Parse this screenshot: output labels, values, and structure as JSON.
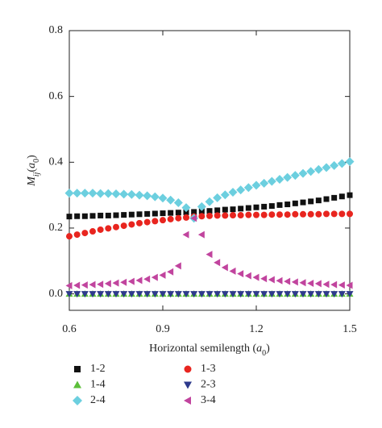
{
  "chart_data": {
    "type": "scatter",
    "xlabel": [
      "Horizontal semilength (",
      "a",
      "0",
      ")"
    ],
    "ylabel": [
      "M",
      "ij",
      "(",
      "a",
      "0",
      ")"
    ],
    "x": [
      0.6,
      0.625,
      0.65,
      0.675,
      0.7,
      0.725,
      0.75,
      0.775,
      0.8,
      0.825,
      0.85,
      0.875,
      0.9,
      0.925,
      0.95,
      0.975,
      1.0,
      1.025,
      1.05,
      1.075,
      1.1,
      1.125,
      1.15,
      1.175,
      1.2,
      1.225,
      1.25,
      1.275,
      1.3,
      1.325,
      1.35,
      1.375,
      1.4,
      1.425,
      1.45,
      1.475,
      1.5
    ],
    "xlim": [
      0.6,
      1.5
    ],
    "xticks": [
      0.6,
      0.9,
      1.2,
      1.5
    ],
    "ylim": [
      -0.05,
      0.8
    ],
    "yticks": [
      {
        "value": 0,
        "label": "0.0"
      },
      0.2,
      0.4,
      0.6,
      0.8
    ],
    "series": [
      {
        "name": "1-2",
        "color": "#111111",
        "marker": "square",
        "values": [
          0.235,
          0.236,
          0.236,
          0.237,
          0.238,
          0.238,
          0.239,
          0.24,
          0.241,
          0.242,
          0.243,
          0.244,
          0.245,
          0.246,
          0.247,
          0.248,
          0.249,
          0.251,
          0.252,
          0.254,
          0.256,
          0.257,
          0.259,
          0.261,
          0.263,
          0.265,
          0.267,
          0.27,
          0.272,
          0.275,
          0.278,
          0.281,
          0.284,
          0.288,
          0.292,
          0.296,
          0.3
        ]
      },
      {
        "name": "1-3",
        "color": "#e8251f",
        "marker": "circle",
        "values": [
          0.175,
          0.18,
          0.185,
          0.19,
          0.195,
          0.199,
          0.203,
          0.207,
          0.211,
          0.215,
          0.218,
          0.221,
          0.224,
          0.227,
          0.23,
          0.232,
          0.235,
          0.236,
          0.237,
          0.238,
          0.238,
          0.239,
          0.239,
          0.24,
          0.24,
          0.24,
          0.241,
          0.241,
          0.241,
          0.242,
          0.242,
          0.242,
          0.242,
          0.243,
          0.243,
          0.243,
          0.243
        ]
      },
      {
        "name": "1-4",
        "color": "#5cbf3a",
        "marker": "triangle-up",
        "values": [
          0,
          0,
          0,
          0,
          0,
          0,
          0,
          0,
          0,
          0,
          0,
          0,
          0,
          0,
          0,
          0,
          0,
          0,
          0,
          0,
          0,
          0,
          0,
          0,
          0,
          0,
          0,
          0,
          0,
          0,
          0,
          0,
          0,
          0,
          0,
          0,
          0
        ]
      },
      {
        "name": "2-3",
        "color": "#2e3a8c",
        "marker": "triangle-down",
        "values": [
          0,
          0,
          0,
          0,
          0,
          0,
          0,
          0,
          0,
          0,
          0,
          0,
          0,
          0,
          0,
          0,
          0,
          0,
          0,
          0,
          0,
          0,
          0,
          0,
          0,
          0,
          0,
          0,
          0,
          0,
          0,
          0,
          0,
          0,
          0,
          0,
          0
        ]
      },
      {
        "name": "2-4",
        "color": "#6ccfdf",
        "marker": "diamond",
        "values": [
          0.306,
          0.306,
          0.306,
          0.306,
          0.305,
          0.305,
          0.304,
          0.303,
          0.302,
          0.3,
          0.298,
          0.295,
          0.291,
          0.285,
          0.277,
          0.262,
          0.23,
          0.265,
          0.28,
          0.292,
          0.301,
          0.309,
          0.316,
          0.323,
          0.33,
          0.336,
          0.342,
          0.348,
          0.354,
          0.36,
          0.366,
          0.372,
          0.378,
          0.384,
          0.39,
          0.396,
          0.402
        ]
      },
      {
        "name": "3-4",
        "color": "#c1449e",
        "marker": "triangle-left",
        "values": [
          0.025,
          0.026,
          0.027,
          0.028,
          0.029,
          0.031,
          0.033,
          0.035,
          0.038,
          0.041,
          0.045,
          0.05,
          0.057,
          0.067,
          0.085,
          0.18,
          0.23,
          0.18,
          0.12,
          0.095,
          0.08,
          0.069,
          0.061,
          0.055,
          0.05,
          0.046,
          0.043,
          0.04,
          0.038,
          0.036,
          0.034,
          0.032,
          0.031,
          0.029,
          0.028,
          0.027,
          0.026
        ]
      }
    ]
  }
}
